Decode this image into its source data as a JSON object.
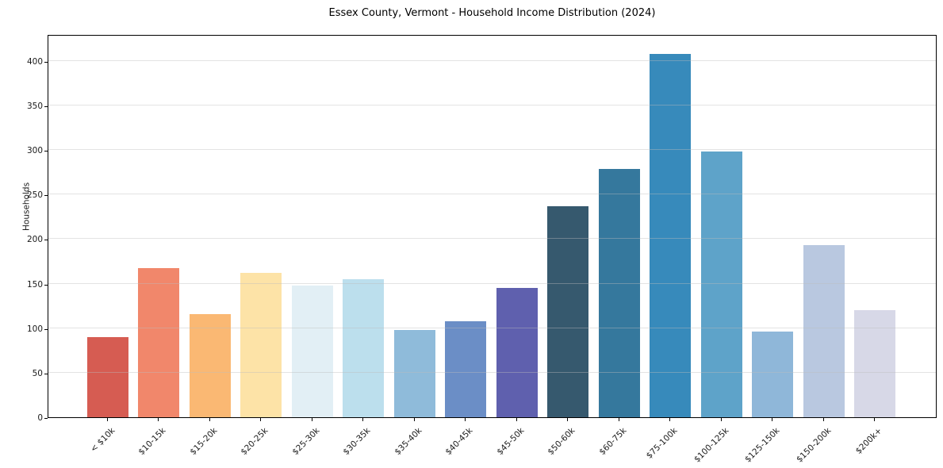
{
  "chart_data": {
    "type": "bar",
    "title": "Essex County, Vermont - Household Income Distribution (2024)",
    "xlabel": "",
    "ylabel": "Households",
    "categories": [
      "< $10k",
      "$10-15k",
      "$15-20k",
      "$20-25k",
      "$25-30k",
      "$30-35k",
      "$35-40k",
      "$40-45k",
      "$45-50k",
      "$50-60k",
      "$60-75k",
      "$75-100k",
      "$100-125k",
      "$125-150k",
      "$150-200k",
      "$200k+"
    ],
    "values": [
      90,
      167,
      116,
      162,
      148,
      155,
      98,
      108,
      145,
      237,
      279,
      408,
      298,
      96,
      193,
      120
    ],
    "bar_colors": [
      "#d65c52",
      "#f1876b",
      "#fab873",
      "#fde3a7",
      "#e2eff5",
      "#bcdfed",
      "#8fbbda",
      "#6b8ec6",
      "#5f60ae",
      "#36596e",
      "#35789d",
      "#378abb",
      "#5ea3c9",
      "#8fb7d9",
      "#b9c8e0",
      "#d7d8e7"
    ],
    "ylim": [
      0,
      430
    ],
    "yticks": [
      0,
      50,
      100,
      150,
      200,
      250,
      300,
      350,
      400
    ],
    "grid": "horizontal",
    "gridline_color": "#e6e6e6",
    "tick_label_rotation": 45,
    "legend": "none"
  }
}
